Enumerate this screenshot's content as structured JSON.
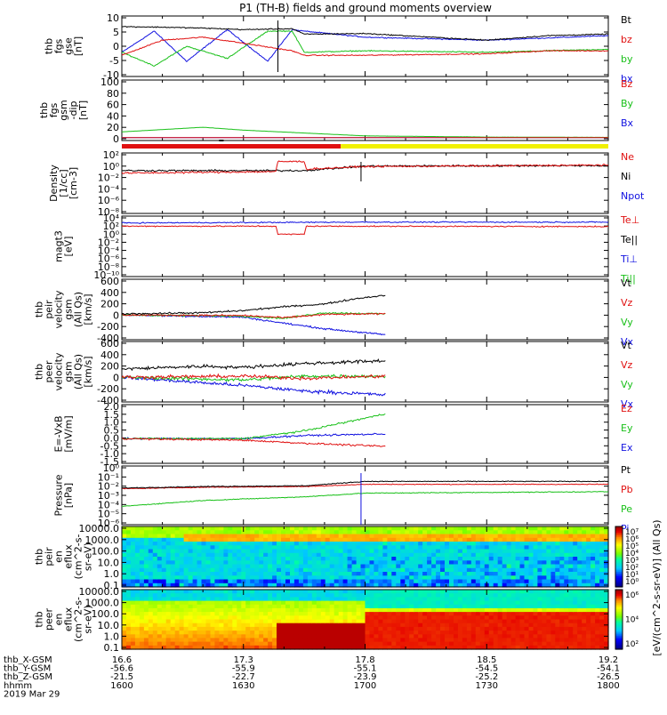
{
  "title": "P1 (TH-B) fields and ground moments overview",
  "colors": {
    "black": "#000000",
    "red": "#e01010",
    "green": "#18c018",
    "blue": "#1010e0",
    "yellow": "#f0f000",
    "darkred": "#b00000"
  },
  "panels": [
    {
      "ylabel": [
        "thb",
        "fgs",
        "gse",
        "[nT]"
      ],
      "yticks": [
        "10",
        "5",
        "0",
        "-5",
        "-10"
      ],
      "legend": [
        {
          "text": "Bt",
          "color": "black"
        },
        {
          "text": "bz",
          "color": "red"
        },
        {
          "text": "by",
          "color": "green"
        },
        {
          "text": "bx",
          "color": "blue"
        }
      ]
    },
    {
      "ylabel": [
        "thb",
        "fgs",
        "gsm",
        "-dip",
        "[nT]"
      ],
      "yticks": [
        "100",
        "80",
        "60",
        "40",
        "20",
        "0"
      ],
      "legend": [
        {
          "text": "Bz",
          "color": "red"
        },
        {
          "text": "By",
          "color": "green"
        },
        {
          "text": "Bx",
          "color": "blue"
        }
      ]
    },
    {
      "ylabel": [
        "Density",
        "[1/cc]",
        "[cm-3]"
      ],
      "yticks": [
        "10²",
        "10⁰",
        "10⁻²",
        "10⁻⁴",
        "10⁻⁶",
        "10⁻⁸"
      ],
      "legend": [
        {
          "text": "Ne",
          "color": "red"
        },
        {
          "text": "Ni",
          "color": "black"
        },
        {
          "text": "Npot",
          "color": "blue"
        }
      ]
    },
    {
      "ylabel": [
        "magt3",
        "[eV]"
      ],
      "yticks": [
        "10⁴",
        "10²",
        "10⁰",
        "10⁻²",
        "10⁻⁴",
        "10⁻⁶",
        "10⁻⁸",
        "10⁻¹⁰"
      ],
      "legend": [
        {
          "text": "Te⊥",
          "color": "red"
        },
        {
          "text": "Te||",
          "color": "black"
        },
        {
          "text": "Ti⊥",
          "color": "blue"
        },
        {
          "text": "Ti||",
          "color": "green"
        }
      ]
    },
    {
      "ylabel": [
        "thb",
        "peir",
        "velocity",
        "gsm",
        "(All Qs)",
        "[km/s]"
      ],
      "yticks": [
        "600",
        "400",
        "200",
        "0",
        "-200",
        "-400"
      ],
      "legend": [
        {
          "text": "Vt",
          "color": "black"
        },
        {
          "text": "Vz",
          "color": "red"
        },
        {
          "text": "Vy",
          "color": "green"
        },
        {
          "text": "Vx",
          "color": "blue"
        }
      ]
    },
    {
      "ylabel": [
        "thb",
        "peer",
        "velocity",
        "gsm",
        "(All Qs)",
        "[km/s]"
      ],
      "yticks": [
        "600",
        "400",
        "200",
        "0",
        "-200",
        "-400"
      ],
      "legend": [
        {
          "text": "Vt",
          "color": "black"
        },
        {
          "text": "Vz",
          "color": "red"
        },
        {
          "text": "Vy",
          "color": "green"
        },
        {
          "text": "Vx",
          "color": "blue"
        }
      ]
    },
    {
      "ylabel": [
        "E=-VxB",
        "[mV/m]"
      ],
      "yticks": [
        "2.0",
        "1.5",
        "1.0",
        "0.5",
        "0.0",
        "-0.5",
        "-1.0",
        "-1.5"
      ],
      "legend": [
        {
          "text": "Ez",
          "color": "red"
        },
        {
          "text": "Ey",
          "color": "green"
        },
        {
          "text": "Ex",
          "color": "blue"
        }
      ]
    },
    {
      "ylabel": [
        "Pressure",
        "[nPa]"
      ],
      "yticks": [
        "10⁰",
        "10⁻¹",
        "10⁻²",
        "10⁻³",
        "10⁻⁴",
        "10⁻⁵",
        "10⁻⁶"
      ],
      "legend": [
        {
          "text": "Pt",
          "color": "black"
        },
        {
          "text": "Pb",
          "color": "red"
        },
        {
          "text": "Pe",
          "color": "green"
        },
        {
          "text": "Pi",
          "color": "blue"
        }
      ]
    },
    {
      "ylabel": [
        "thb",
        "peir",
        "en",
        "eflux",
        "(cm^2-s-",
        "sr-eV)"
      ],
      "yticks": [
        "10000.0",
        "1000.0",
        "100.0",
        "10.0",
        "1.0",
        "0.1"
      ],
      "legend": []
    },
    {
      "ylabel": [
        "thb",
        "peer",
        "en",
        "eflux",
        "(cm^2-s-",
        "sr-eV)"
      ],
      "yticks": [
        "10000.0",
        "1000.0",
        "100.0",
        "10.0",
        "1.0",
        "0.1"
      ],
      "legend": []
    }
  ],
  "colorbars": [
    {
      "ticks": [
        "10⁷",
        "10⁶",
        "10⁵",
        "10⁴",
        "10³",
        "10²",
        "10¹",
        "10⁰"
      ]
    },
    {
      "ticks": [
        "10⁶",
        "10⁴",
        "10²"
      ]
    }
  ],
  "colorbar_label": "[eV/(cm^2-s-sr-eV)] (All Qs)",
  "mode_bar_label": "",
  "footer": {
    "row_labels": [
      "thb_X-GSM",
      "thb_Y-GSM",
      "thb_Z-GSM",
      "hhmm",
      "2019 Mar 29"
    ],
    "columns": [
      {
        "x": "16.6",
        "y": "-56.6",
        "z": "-21.5",
        "t": "1600"
      },
      {
        "x": "17.3",
        "y": "-55.9",
        "z": "-22.7",
        "t": "1630"
      },
      {
        "x": "17.8",
        "y": "-55.1",
        "z": "-23.9",
        "t": "1700"
      },
      {
        "x": "18.5",
        "y": "-54.5",
        "z": "-25.2",
        "t": "1730"
      },
      {
        "x": "19.2",
        "y": "-54.1",
        "z": "-26.5",
        "t": "1800"
      }
    ]
  },
  "chart_data": {
    "type": "line",
    "title": "P1 (TH-B) fields and ground moments overview",
    "xlabel": "hhmm",
    "x_ticks_hhmm": [
      "1600",
      "1630",
      "1700",
      "1730",
      "1800"
    ],
    "x_range_min": [
      0,
      120
    ],
    "stacked_panels": [
      {
        "name": "fgs gse",
        "ylim": [
          -10,
          10
        ],
        "series": [
          {
            "name": "Bt",
            "x": [
              0,
              10,
              20,
              30,
              42,
              45,
              60,
              90,
              105,
              120
            ],
            "values": [
              6.5,
              6.3,
              6.0,
              5.5,
              5.8,
              4.0,
              4.2,
              2.0,
              3.5,
              4.0
            ]
          },
          {
            "name": "bz",
            "x": [
              0,
              10,
              20,
              30,
              42,
              45,
              60,
              90,
              105,
              120
            ],
            "values": [
              -3.0,
              2.0,
              3.0,
              1.0,
              -1.5,
              -3.0,
              -3.0,
              -2.5,
              -1.5,
              -1.5
            ]
          },
          {
            "name": "by",
            "x": [
              0,
              8,
              16,
              26,
              36,
              42,
              45,
              60,
              90,
              120
            ],
            "values": [
              -2.0,
              -6.5,
              0.0,
              -4.0,
              5.0,
              5.0,
              -2.0,
              -1.5,
              -2.0,
              -1.0
            ]
          },
          {
            "name": "bx",
            "x": [
              0,
              8,
              16,
              26,
              36,
              42,
              45,
              60,
              90,
              120
            ],
            "values": [
              -2.0,
              5.0,
              -5.0,
              5.5,
              -5.0,
              5.5,
              5.0,
              3.0,
              2.0,
              3.5
            ]
          }
        ]
      },
      {
        "name": "fgs gsm-dip",
        "ylim": [
          -5,
          100
        ],
        "series": [
          {
            "name": "Bz",
            "x": [
              0,
              120
            ],
            "values": [
              0,
              0
            ]
          },
          {
            "name": "By",
            "x": [
              0,
              10,
              20,
              30,
              45,
              60,
              90,
              120
            ],
            "values": [
              10,
              14,
              18,
              13,
              8,
              3,
              1,
              0.5
            ]
          },
          {
            "name": "Bx",
            "x": [
              0,
              120
            ],
            "values": [
              0,
              0
            ]
          }
        ]
      },
      {
        "name": "Density",
        "scale": "log",
        "ylim_exp": [
          -9,
          3
        ],
        "series": [
          {
            "name": "Ne",
            "x": [
              0,
              38,
              38.5,
              45,
              45.5,
              60,
              120
            ],
            "values_log10": [
              -1.0,
              -0.7,
              1.3,
              1.3,
              -0.2,
              0.3,
              0.6
            ]
          },
          {
            "name": "Ni",
            "x": [
              0,
              45,
              60,
              120
            ],
            "values_log10": [
              -0.5,
              -0.5,
              0.4,
              0.5
            ]
          }
        ]
      },
      {
        "name": "magt3",
        "scale": "log",
        "ylim_exp": [
          -11,
          4
        ],
        "series": [
          {
            "name": "Te⊥",
            "x": [
              0,
              38,
              38.5,
              45,
              45.5,
              120
            ],
            "values_log10": [
              1.5,
              1.5,
              -0.5,
              -0.5,
              1.5,
              1.4
            ]
          },
          {
            "name": "Ti⊥",
            "x": [
              0,
              60,
              120
            ],
            "values_log10": [
              2.3,
              2.5,
              2.5
            ]
          }
        ]
      },
      {
        "name": "peir velocity",
        "ylim": [
          -450,
          650
        ],
        "series": [
          {
            "name": "Vt",
            "x": [
              0,
              20,
              30,
              40,
              50,
              58,
              65
            ],
            "values": [
              20,
              40,
              80,
              150,
              200,
              300,
              360
            ]
          },
          {
            "name": "Vz",
            "x": [
              0,
              30,
              40,
              50,
              65
            ],
            "values": [
              0,
              -10,
              -50,
              10,
              20
            ]
          },
          {
            "name": "Vy",
            "x": [
              0,
              30,
              40,
              50,
              65
            ],
            "values": [
              0,
              -20,
              -60,
              40,
              20
            ]
          },
          {
            "name": "Vx",
            "x": [
              0,
              30,
              40,
              50,
              65
            ],
            "values": [
              0,
              -40,
              -150,
              -250,
              -360
            ]
          }
        ]
      },
      {
        "name": "peer velocity",
        "ylim": [
          -450,
          650
        ],
        "series": [
          {
            "name": "Vt",
            "x": [
              0,
              20,
              30,
              45,
              65
            ],
            "values": [
              150,
              200,
              180,
              250,
              300
            ]
          },
          {
            "name": "Vz",
            "x": [
              0,
              30,
              45,
              65
            ],
            "values": [
              0,
              20,
              -20,
              20
            ]
          },
          {
            "name": "Vy",
            "x": [
              0,
              30,
              45,
              65
            ],
            "values": [
              0,
              -50,
              20,
              20
            ]
          },
          {
            "name": "Vx",
            "x": [
              0,
              30,
              45,
              65
            ],
            "values": [
              0,
              -150,
              -250,
              -320
            ]
          }
        ]
      },
      {
        "name": "E=-VxB",
        "ylim": [
          -1.6,
          2.2
        ],
        "series": [
          {
            "name": "Ez",
            "x": [
              0,
              30,
              45,
              65
            ],
            "values": [
              0.0,
              -0.1,
              -0.3,
              -0.5
            ]
          },
          {
            "name": "Ey",
            "x": [
              0,
              30,
              45,
              65
            ],
            "values": [
              0.0,
              0.0,
              0.5,
              1.6
            ]
          },
          {
            "name": "Ex",
            "x": [
              0,
              30,
              45,
              65
            ],
            "values": [
              0.0,
              0.0,
              0.2,
              0.3
            ]
          }
        ]
      },
      {
        "name": "Pressure",
        "scale": "log",
        "ylim_exp": [
          -7,
          1
        ],
        "series": [
          {
            "name": "Pt",
            "x": [
              0,
              20,
              45,
              60,
              120
            ],
            "values_log10": [
              -2.0,
              -1.8,
              -1.7,
              -1.1,
              -1.1
            ]
          },
          {
            "name": "Pb",
            "x": [
              0,
              20,
              45,
              60,
              120
            ],
            "values_log10": [
              -2.1,
              -1.9,
              -1.8,
              -1.5,
              -1.5
            ]
          },
          {
            "name": "Pe",
            "x": [
              0,
              20,
              45,
              60,
              120
            ],
            "values_log10": [
              -4.5,
              -3.7,
              -3.2,
              -2.7,
              -2.5
            ]
          }
        ]
      }
    ]
  }
}
